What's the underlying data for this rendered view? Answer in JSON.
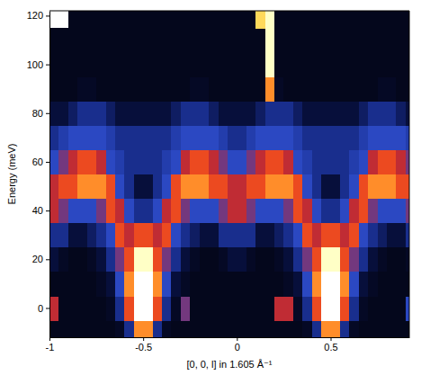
{
  "chart_data": {
    "type": "heatmap",
    "x_label": "[0, 0, l] in 1.605 Å⁻¹",
    "y_label": "Energy (meV)",
    "xlim": [
      -1,
      0.92
    ],
    "ylim": [
      -12,
      122
    ],
    "xticks": [
      -1,
      -0.5,
      0,
      0.5
    ],
    "yticks": [
      0,
      20,
      40,
      60,
      80,
      100,
      120
    ],
    "zlim": [
      0,
      10
    ],
    "x": [
      -0.975,
      -0.925,
      -0.875,
      -0.825,
      -0.775,
      -0.725,
      -0.675,
      -0.625,
      -0.575,
      -0.525,
      -0.475,
      -0.425,
      -0.375,
      -0.325,
      -0.275,
      -0.225,
      -0.175,
      -0.125,
      -0.075,
      -0.025,
      0.025,
      0.075,
      0.125,
      0.175,
      0.225,
      0.275,
      0.325,
      0.375,
      0.425,
      0.475,
      0.525,
      0.575,
      0.625,
      0.675,
      0.725,
      0.775,
      0.825,
      0.875,
      0.925
    ],
    "y": [
      -10,
      0,
      10,
      20,
      30,
      40,
      50,
      60,
      70,
      80,
      90,
      100,
      110,
      120
    ],
    "z": [
      [
        0.3,
        0.3,
        0.3,
        0.3,
        0.3,
        0.3,
        0.3,
        0.5,
        2,
        7,
        7,
        2,
        0.5,
        0.3,
        0.3,
        0.3,
        0.3,
        0.3,
        0.3,
        0.3,
        0.3,
        0.3,
        0.3,
        0.3,
        0.3,
        0.3,
        0.3,
        0.5,
        2,
        7,
        7,
        2,
        0.5,
        0.3,
        0.3,
        0.3,
        0.3,
        0.3,
        0.3
      ],
      [
        5,
        0.3,
        0.3,
        0.3,
        0.3,
        0.3,
        0.5,
        2,
        6,
        10,
        10,
        6,
        2,
        0.5,
        4,
        0.3,
        0.3,
        0.3,
        0.3,
        0.3,
        0.3,
        0.3,
        0.3,
        0.3,
        5,
        5,
        0.5,
        2,
        6,
        10,
        10,
        6,
        2,
        0.5,
        0.3,
        0.3,
        0.3,
        0.3,
        3
      ],
      [
        0.3,
        0.3,
        0.3,
        0.3,
        0.3,
        0.5,
        1,
        3,
        7,
        10,
        10,
        7,
        3,
        1,
        0.5,
        0.3,
        0.3,
        0.3,
        0.3,
        0.3,
        0.3,
        0.3,
        0.3,
        0.3,
        0.3,
        0.5,
        1,
        3,
        7,
        10,
        10,
        7,
        3,
        1,
        0.5,
        0.3,
        0.3,
        0.3,
        0.3
      ],
      [
        1,
        0.5,
        0.3,
        0.3,
        0.5,
        1,
        2,
        4,
        6,
        9,
        9,
        6,
        4,
        2,
        1,
        0.5,
        0.3,
        0.3,
        0.5,
        1,
        1,
        0.5,
        0.3,
        0.3,
        0.5,
        1,
        2,
        4,
        6,
        9,
        9,
        6,
        4,
        2,
        1,
        0.5,
        0.3,
        0.3,
        0.5
      ],
      [
        2,
        2,
        1,
        1,
        1.5,
        2,
        3,
        6,
        5,
        6,
        6,
        5,
        6,
        3,
        2,
        1.5,
        1,
        1,
        2,
        2,
        2,
        2,
        1,
        1,
        1.5,
        2,
        3,
        6,
        5,
        6,
        6,
        5,
        6,
        3,
        2,
        1.5,
        1,
        1,
        2
      ],
      [
        5,
        4,
        3,
        3,
        3,
        4,
        6,
        5,
        3,
        2,
        2,
        3,
        5,
        6,
        4,
        3,
        3,
        3,
        4,
        5,
        5,
        4,
        3,
        3,
        3,
        4,
        6,
        5,
        3,
        2,
        2,
        3,
        5,
        6,
        4,
        3,
        3,
        3,
        4
      ],
      [
        5,
        6,
        6,
        7,
        7,
        7,
        6,
        3,
        2,
        1,
        1,
        2,
        3,
        6,
        7,
        7,
        7,
        6,
        6,
        5,
        5,
        6,
        6,
        7,
        7,
        7,
        6,
        3,
        2,
        1,
        1,
        2,
        3,
        6,
        7,
        7,
        7,
        6,
        6
      ],
      [
        3,
        4,
        5,
        6,
        6,
        5,
        3,
        2.5,
        2,
        2,
        2,
        2,
        2.5,
        3,
        5,
        6,
        6,
        5,
        4,
        3,
        3,
        4,
        5,
        6,
        6,
        5,
        3,
        2.5,
        2,
        2,
        2,
        2,
        2.5,
        3,
        5,
        6,
        6,
        5,
        4
      ],
      [
        2,
        2.5,
        3,
        3,
        3,
        3,
        2.5,
        2,
        2,
        2,
        2,
        2,
        2,
        2.5,
        3,
        3,
        3,
        3,
        2.5,
        2,
        2,
        2.5,
        3,
        3,
        3,
        3,
        2.5,
        2,
        2,
        2,
        2,
        2,
        2,
        2.5,
        3,
        3,
        3,
        3,
        2.5
      ],
      [
        1,
        1,
        1.5,
        2,
        2,
        2,
        1.5,
        1,
        1,
        1,
        1,
        1,
        1,
        1.5,
        2,
        2,
        2,
        1.5,
        1,
        1,
        1,
        1,
        1.5,
        2,
        2,
        2,
        1.5,
        1,
        1,
        1,
        1,
        1,
        1,
        1.5,
        2,
        2,
        2,
        1.5,
        1
      ],
      [
        0.3,
        0.3,
        0.3,
        0.5,
        0.5,
        0.3,
        0.3,
        0.3,
        0.3,
        0.3,
        0.3,
        0.3,
        0.3,
        0.3,
        0.3,
        0.5,
        0.5,
        0.3,
        0.3,
        0.3,
        0.3,
        0.3,
        0.3,
        7,
        0.5,
        0.3,
        0.3,
        0.3,
        0.3,
        0.3,
        0.3,
        0.3,
        0.3,
        0.3,
        0.3,
        0.5,
        0.5,
        0.3,
        0.3
      ],
      [
        0.3,
        0.3,
        0.3,
        0.3,
        0.3,
        0.3,
        0.3,
        0.3,
        0.3,
        0.3,
        0.3,
        0.3,
        0.3,
        0.3,
        0.3,
        0.3,
        0.3,
        0.3,
        0.3,
        0.3,
        0.3,
        0.3,
        0.3,
        9,
        0.3,
        0.3,
        0.3,
        0.3,
        0.3,
        0.3,
        0.3,
        0.3,
        0.3,
        0.3,
        0.3,
        0.3,
        0.3,
        0.3,
        0.3
      ],
      [
        0.3,
        0.3,
        0.3,
        0.3,
        0.3,
        0.3,
        0.3,
        0.3,
        0.3,
        0.3,
        0.3,
        0.3,
        0.3,
        0.3,
        0.3,
        0.3,
        0.3,
        0.3,
        0.3,
        0.3,
        0.3,
        0.3,
        0.3,
        9,
        0.3,
        0.3,
        0.3,
        0.3,
        0.3,
        0.3,
        0.3,
        0.3,
        0.3,
        0.3,
        0.3,
        0.3,
        0.3,
        0.3,
        0.3
      ],
      [
        null,
        null,
        0.3,
        0.3,
        0.3,
        0.3,
        0.3,
        0.3,
        0.3,
        0.3,
        0.3,
        0.3,
        0.3,
        0.3,
        0.3,
        0.3,
        0.3,
        0.3,
        0.3,
        0.3,
        0.3,
        0.3,
        8,
        9,
        0.3,
        0.3,
        0.3,
        0.3,
        0.3,
        0.3,
        0.3,
        0.3,
        0.3,
        0.3,
        0.3,
        0.3,
        0.3,
        0.3,
        0.3
      ]
    ]
  }
}
